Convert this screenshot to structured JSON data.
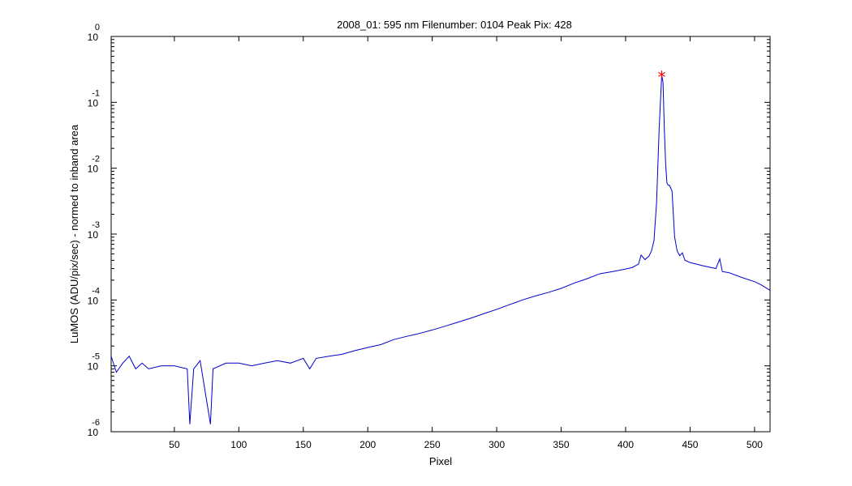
{
  "chart_data": {
    "type": "line",
    "title": "2008_01: 595 nm  Filenumber: 0104 Peak Pix: 428",
    "xlabel": "Pixel",
    "ylabel": "LuMOS (ADU/pix/sec) - normed to inband area",
    "xlim": [
      1,
      512
    ],
    "ylim": [
      1e-06,
      1
    ],
    "yscale": "log",
    "x_ticks": [
      50,
      100,
      150,
      200,
      250,
      300,
      350,
      400,
      450,
      500
    ],
    "y_ticks": [
      {
        "base": "10",
        "exp": "-6",
        "value": 1e-06
      },
      {
        "base": "10",
        "exp": "-5",
        "value": 1e-05
      },
      {
        "base": "10",
        "exp": "-4",
        "value": 0.0001
      },
      {
        "base": "10",
        "exp": "-3",
        "value": 0.001
      },
      {
        "base": "10",
        "exp": "-2",
        "value": 0.01
      },
      {
        "base": "10",
        "exp": "-1",
        "value": 0.1
      },
      {
        "base": "10",
        "exp": "0",
        "value": 1
      }
    ],
    "grid": false,
    "series": [
      {
        "color": "#0000cc",
        "points": [
          [
            1,
            1.4e-05
          ],
          [
            5,
            8e-06
          ],
          [
            10,
            1.1e-05
          ],
          [
            15,
            1.4e-05
          ],
          [
            20,
            9e-06
          ],
          [
            25,
            1.1e-05
          ],
          [
            30,
            9e-06
          ],
          [
            40,
            1e-05
          ],
          [
            50,
            1e-05
          ],
          [
            60,
            9e-06
          ],
          [
            62,
            1.3e-06
          ],
          [
            65,
            9e-06
          ],
          [
            70,
            1.2e-05
          ],
          [
            78,
            1.3e-06
          ],
          [
            80,
            9e-06
          ],
          [
            90,
            1.1e-05
          ],
          [
            100,
            1.1e-05
          ],
          [
            110,
            1e-05
          ],
          [
            120,
            1.1e-05
          ],
          [
            130,
            1.2e-05
          ],
          [
            140,
            1.1e-05
          ],
          [
            150,
            1.3e-05
          ],
          [
            155,
            9e-06
          ],
          [
            160,
            1.3e-05
          ],
          [
            170,
            1.4e-05
          ],
          [
            180,
            1.5e-05
          ],
          [
            190,
            1.7e-05
          ],
          [
            200,
            1.9e-05
          ],
          [
            210,
            2.1e-05
          ],
          [
            220,
            2.5e-05
          ],
          [
            230,
            2.8e-05
          ],
          [
            240,
            3.1e-05
          ],
          [
            250,
            3.5e-05
          ],
          [
            260,
            4e-05
          ],
          [
            270,
            4.6e-05
          ],
          [
            280,
            5.3e-05
          ],
          [
            290,
            6.2e-05
          ],
          [
            300,
            7.2e-05
          ],
          [
            310,
            8.5e-05
          ],
          [
            320,
            0.0001
          ],
          [
            330,
            0.000115
          ],
          [
            340,
            0.00013
          ],
          [
            350,
            0.00015
          ],
          [
            360,
            0.00018
          ],
          [
            370,
            0.00021
          ],
          [
            380,
            0.00025
          ],
          [
            390,
            0.00027
          ],
          [
            400,
            0.000295
          ],
          [
            405,
            0.00031
          ],
          [
            410,
            0.00035
          ],
          [
            412,
            0.00048
          ],
          [
            415,
            0.00041
          ],
          [
            418,
            0.00046
          ],
          [
            420,
            0.00055
          ],
          [
            422,
            0.0008
          ],
          [
            424,
            0.003
          ],
          [
            426,
            0.04
          ],
          [
            428,
            0.26
          ],
          [
            429,
            0.2
          ],
          [
            430,
            0.04
          ],
          [
            431,
            0.012
          ],
          [
            432,
            0.006
          ],
          [
            433,
            0.0055
          ],
          [
            434,
            0.0055
          ],
          [
            436,
            0.0045
          ],
          [
            437,
            0.002
          ],
          [
            438,
            0.0009
          ],
          [
            440,
            0.00055
          ],
          [
            442,
            0.00047
          ],
          [
            444,
            0.00052
          ],
          [
            446,
            0.0004
          ],
          [
            450,
            0.00037
          ],
          [
            460,
            0.00033
          ],
          [
            470,
            0.0003
          ],
          [
            473,
            0.00042
          ],
          [
            475,
            0.00027
          ],
          [
            480,
            0.00026
          ],
          [
            490,
            0.00022
          ],
          [
            500,
            0.00019
          ],
          [
            505,
            0.00017
          ],
          [
            512,
            0.00014
          ]
        ]
      }
    ],
    "annotations": [
      {
        "type": "peak-marker",
        "x": 428,
        "y": 0.26,
        "marker": "*",
        "color": "#ff0000"
      }
    ]
  }
}
